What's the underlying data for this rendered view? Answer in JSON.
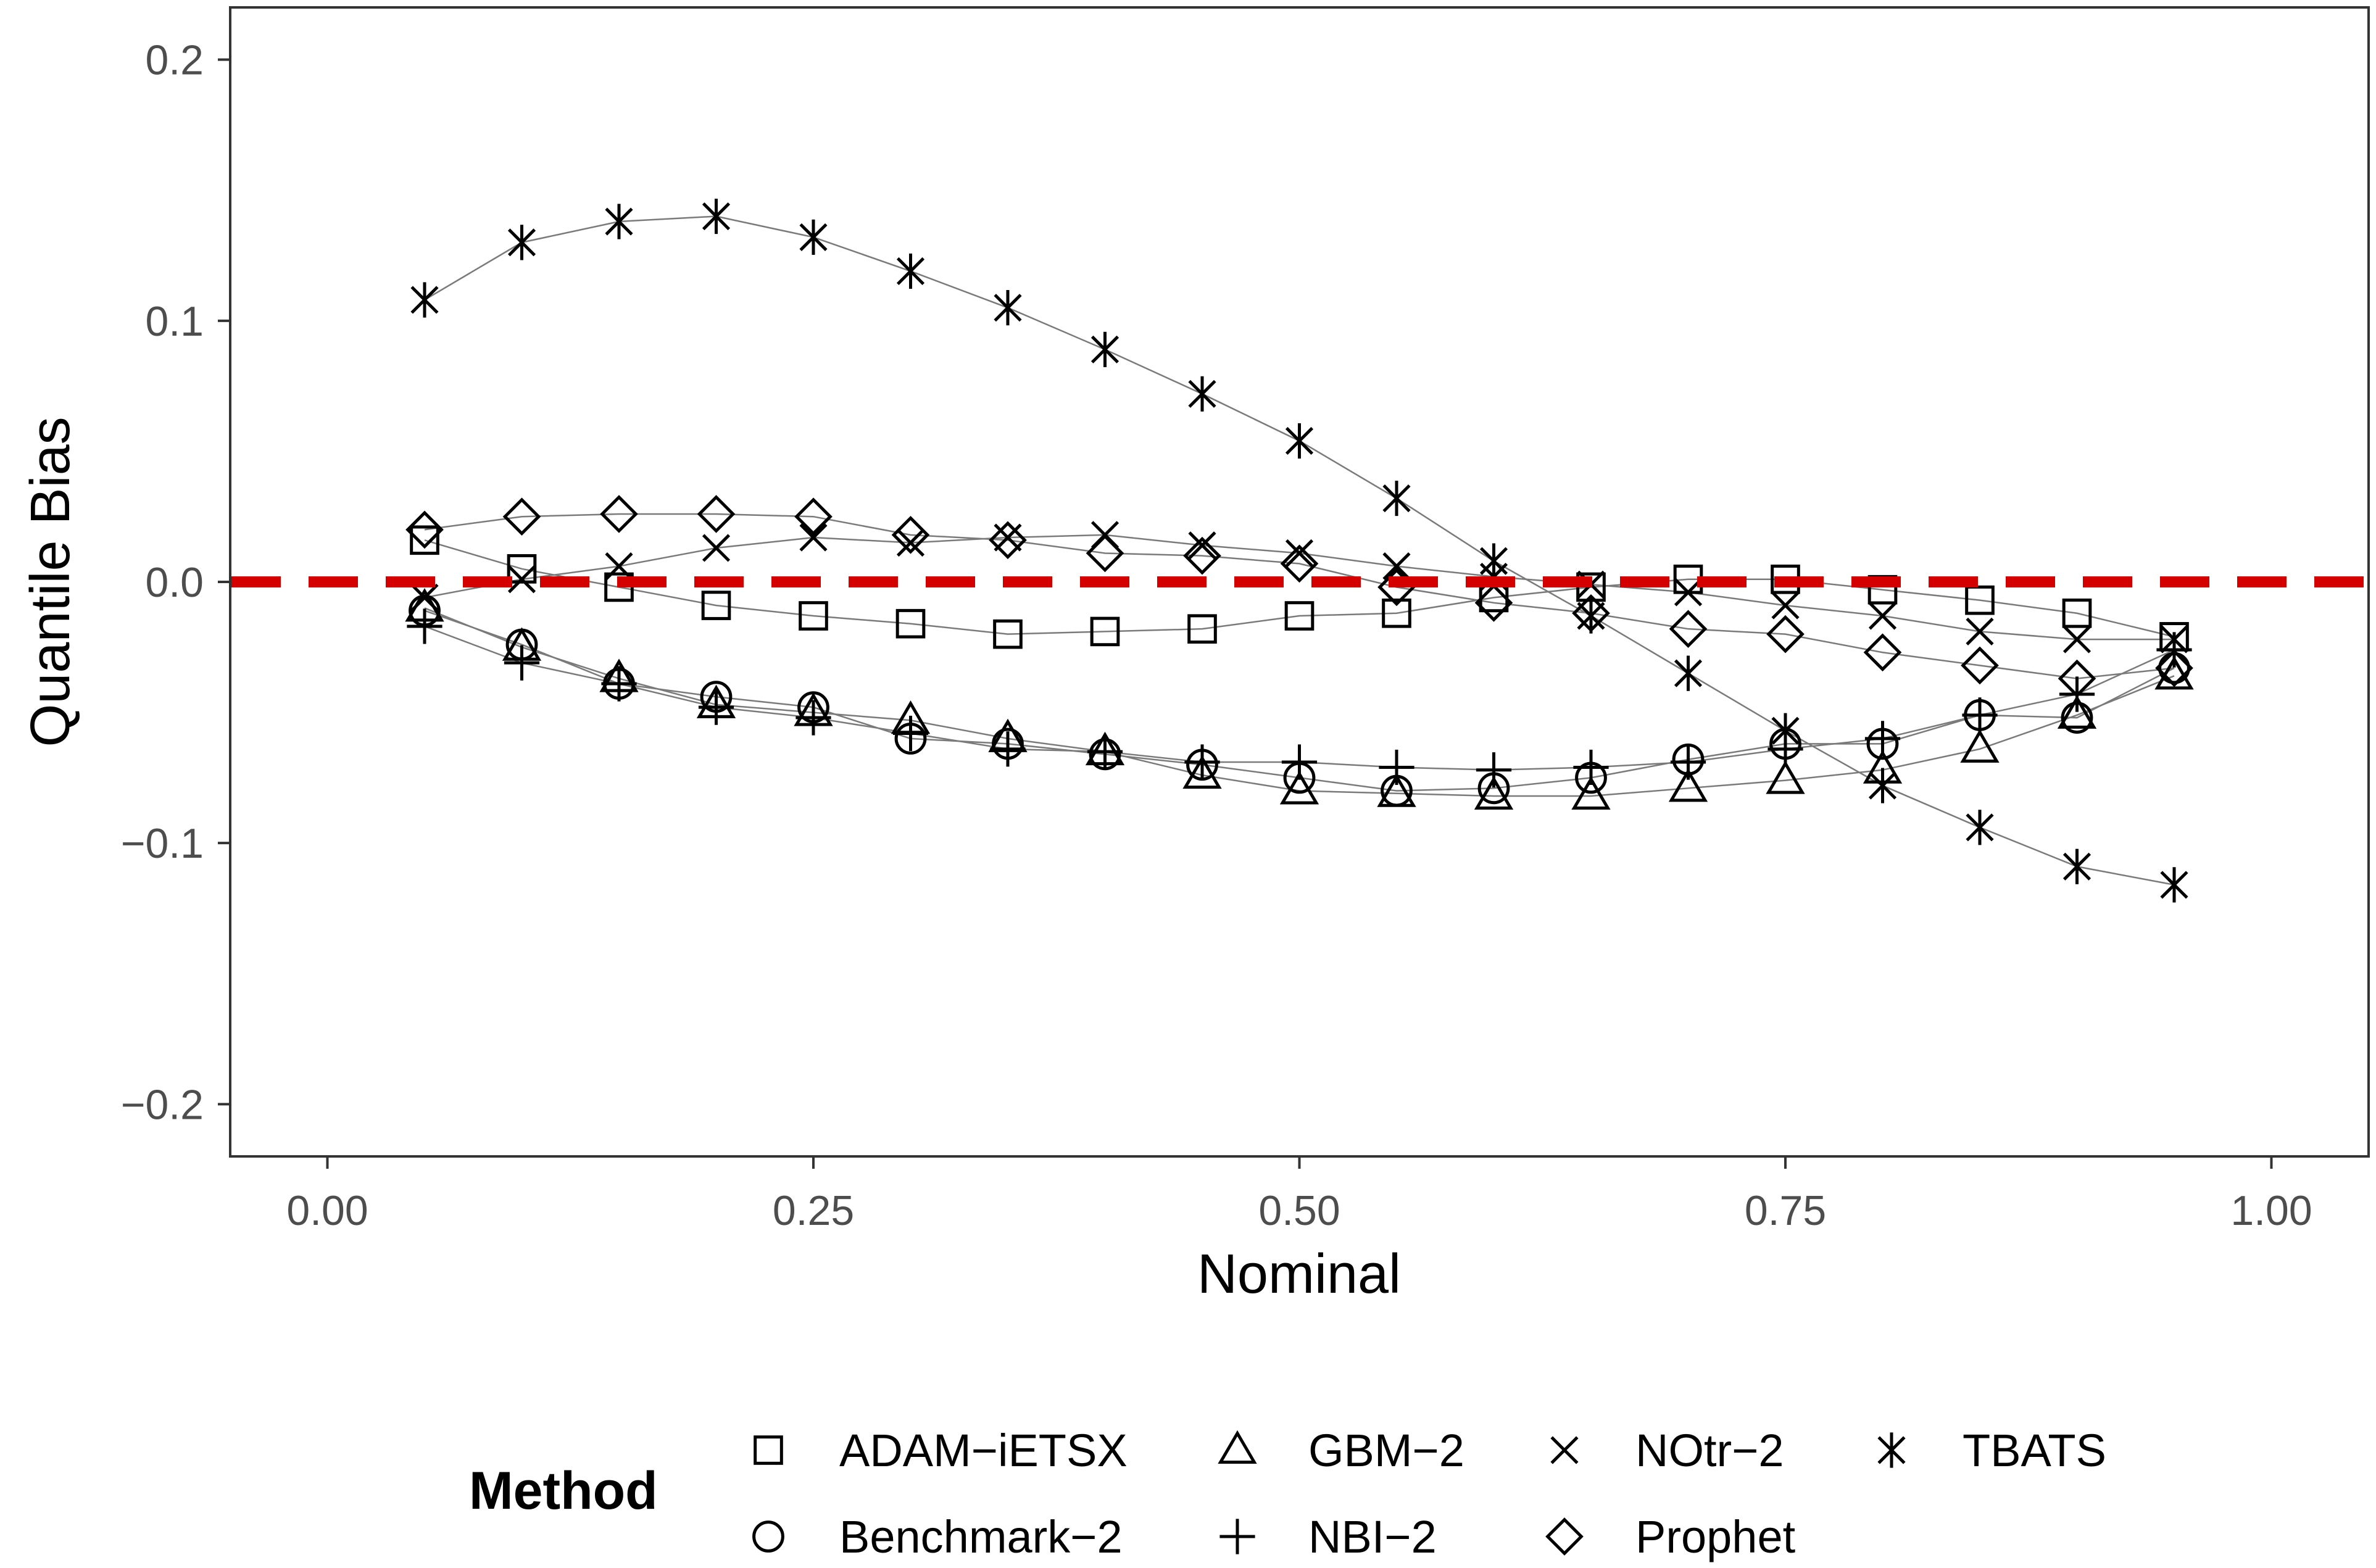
{
  "chart_data": {
    "type": "line",
    "xlabel": "Nominal",
    "ylabel": "Quantile Bias",
    "xlim": [
      -0.05,
      1.05
    ],
    "ylim": [
      -0.22,
      0.22
    ],
    "x_ticks": [
      "0.00",
      "0.25",
      "0.50",
      "0.75",
      "1.00"
    ],
    "x_tick_values": [
      0,
      0.25,
      0.5,
      0.75,
      1.0
    ],
    "y_ticks": [
      "0.2",
      "0.1",
      "0.0",
      "−0.1",
      "−0.2"
    ],
    "y_tick_values": [
      0.2,
      0.1,
      0.0,
      -0.1,
      -0.2
    ],
    "reference_line": {
      "y": 0.0,
      "color": "#d40000",
      "style": "dashed"
    },
    "grid": false,
    "legend": {
      "title": "Method",
      "position": "bottom"
    },
    "x": [
      0.05,
      0.1,
      0.15,
      0.2,
      0.25,
      0.3,
      0.35,
      0.4,
      0.45,
      0.5,
      0.55,
      0.6,
      0.65,
      0.7,
      0.75,
      0.8,
      0.85,
      0.9,
      0.95
    ],
    "series": [
      {
        "name": "ADAM−iETSX",
        "marker": "square",
        "values": [
          0.016,
          0.005,
          -0.002,
          -0.009,
          -0.013,
          -0.016,
          -0.02,
          -0.019,
          -0.018,
          -0.013,
          -0.012,
          -0.006,
          -0.002,
          0.001,
          0.001,
          -0.003,
          -0.007,
          -0.012,
          -0.021
        ]
      },
      {
        "name": "Benchmark−2",
        "marker": "circle",
        "values": [
          -0.011,
          -0.024,
          -0.039,
          -0.044,
          -0.048,
          -0.06,
          -0.062,
          -0.066,
          -0.07,
          -0.075,
          -0.08,
          -0.079,
          -0.075,
          -0.068,
          -0.062,
          -0.062,
          -0.051,
          -0.052,
          -0.033
        ]
      },
      {
        "name": "GBM−2",
        "marker": "triangle",
        "values": [
          -0.01,
          -0.025,
          -0.037,
          -0.047,
          -0.05,
          -0.053,
          -0.06,
          -0.065,
          -0.074,
          -0.08,
          -0.081,
          -0.082,
          -0.082,
          -0.079,
          -0.076,
          -0.072,
          -0.064,
          -0.051,
          -0.036
        ]
      },
      {
        "name": "NBI−2",
        "marker": "plus",
        "values": [
          -0.017,
          -0.031,
          -0.039,
          -0.048,
          -0.052,
          -0.058,
          -0.064,
          -0.065,
          -0.069,
          -0.069,
          -0.071,
          -0.072,
          -0.071,
          -0.069,
          -0.064,
          -0.06,
          -0.051,
          -0.043,
          -0.026
        ]
      },
      {
        "name": "NOtr−2",
        "marker": "x",
        "values": [
          -0.006,
          0.001,
          0.006,
          0.013,
          0.017,
          0.015,
          0.017,
          0.018,
          0.014,
          0.011,
          0.006,
          0.002,
          -0.001,
          -0.004,
          -0.009,
          -0.013,
          -0.019,
          -0.022,
          -0.022
        ]
      },
      {
        "name": "Prophet",
        "marker": "diamond",
        "values": [
          0.02,
          0.025,
          0.026,
          0.026,
          0.025,
          0.018,
          0.016,
          0.011,
          0.01,
          0.007,
          -0.002,
          -0.008,
          -0.012,
          -0.018,
          -0.02,
          -0.027,
          -0.032,
          -0.037,
          -0.033
        ]
      },
      {
        "name": "TBATS",
        "marker": "asterisk",
        "values": [
          0.108,
          0.13,
          0.138,
          0.14,
          0.132,
          0.119,
          0.105,
          0.089,
          0.072,
          0.054,
          0.032,
          0.008,
          -0.013,
          -0.035,
          -0.057,
          -0.078,
          -0.094,
          -0.109,
          -0.116
        ]
      }
    ]
  }
}
